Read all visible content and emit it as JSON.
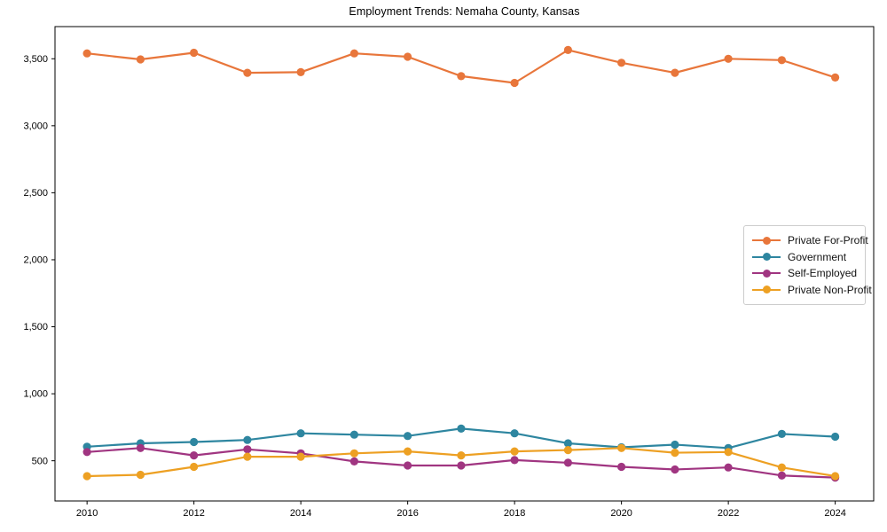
{
  "page": {
    "title": "Employment Trends: Nemaha County, Kansas"
  },
  "chart_data": {
    "type": "line",
    "title": "Employment Trends: Nemaha County, Kansas",
    "x": [
      2010,
      2011,
      2012,
      2013,
      2014,
      2015,
      2016,
      2017,
      2018,
      2019,
      2020,
      2021,
      2022,
      2023,
      2024
    ],
    "series": [
      {
        "name": "Private For-Profit",
        "color": "#E8763B",
        "values": [
          3540,
          3495,
          3545,
          3395,
          3400,
          3540,
          3515,
          3370,
          3320,
          3565,
          3470,
          3395,
          3500,
          3490,
          3360
        ]
      },
      {
        "name": "Government",
        "color": "#2E86A0",
        "values": [
          605,
          630,
          640,
          655,
          705,
          695,
          685,
          740,
          705,
          630,
          600,
          620,
          595,
          700,
          680
        ]
      },
      {
        "name": "Self-Employed",
        "color": "#A03581",
        "values": [
          565,
          595,
          540,
          585,
          555,
          495,
          465,
          465,
          505,
          485,
          455,
          435,
          450,
          390,
          375
        ]
      },
      {
        "name": "Private Non-Profit",
        "color": "#EDA023",
        "values": [
          385,
          395,
          455,
          530,
          530,
          555,
          570,
          540,
          570,
          580,
          595,
          560,
          565,
          450,
          385
        ]
      }
    ],
    "xlabel": "",
    "ylabel": "",
    "xticks": [
      2010,
      2012,
      2014,
      2016,
      2018,
      2020,
      2022,
      2024
    ],
    "yticks": [
      500,
      1000,
      1500,
      2000,
      2500,
      3000,
      3500
    ],
    "xlim": [
      2009.4,
      2024.72
    ],
    "ylim": [
      200,
      3740
    ],
    "grid": false,
    "legend_position": "center right"
  }
}
